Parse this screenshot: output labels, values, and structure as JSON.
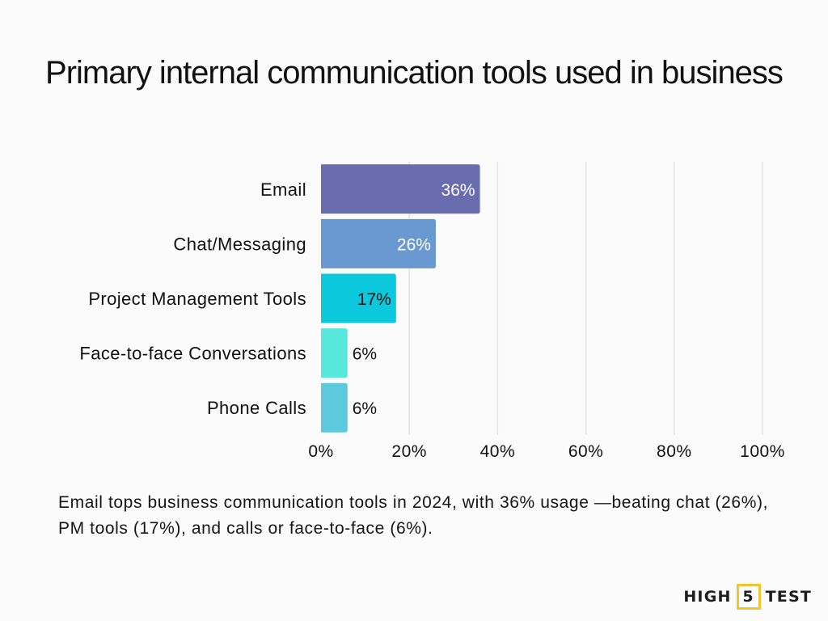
{
  "chart_data": {
    "type": "bar",
    "orientation": "horizontal",
    "title": "Primary internal communication tools used in business",
    "categories": [
      "Email",
      "Chat/Messaging",
      "Project Management Tools",
      "Face-to-face Conversations",
      "Phone Calls"
    ],
    "values": [
      36,
      26,
      17,
      6,
      6
    ],
    "value_labels": [
      "36%",
      "26%",
      "17%",
      "6%",
      "6%"
    ],
    "bar_colors": [
      "#6a6cb0",
      "#6a98d0",
      "#0cc8dc",
      "#56e8da",
      "#5ccadc"
    ],
    "value_label_colors": [
      "#ffffff",
      "#ffffff",
      "#111111",
      "#111111",
      "#111111"
    ],
    "xlim": [
      0,
      100
    ],
    "xticks": [
      0,
      20,
      40,
      60,
      80,
      100
    ],
    "xtick_labels": [
      "0%",
      "20%",
      "40%",
      "60%",
      "80%",
      "100%"
    ],
    "grid": true,
    "gridline_color": "#e2e2e2"
  },
  "caption": "Email tops business communication tools in 2024, with 36% usage —beating chat (26%), PM tools (17%), and calls or face-to-face (6%).",
  "logo": {
    "left": "HIGH",
    "number": "5",
    "right": "TEST",
    "accent_color": "#f4c430"
  }
}
